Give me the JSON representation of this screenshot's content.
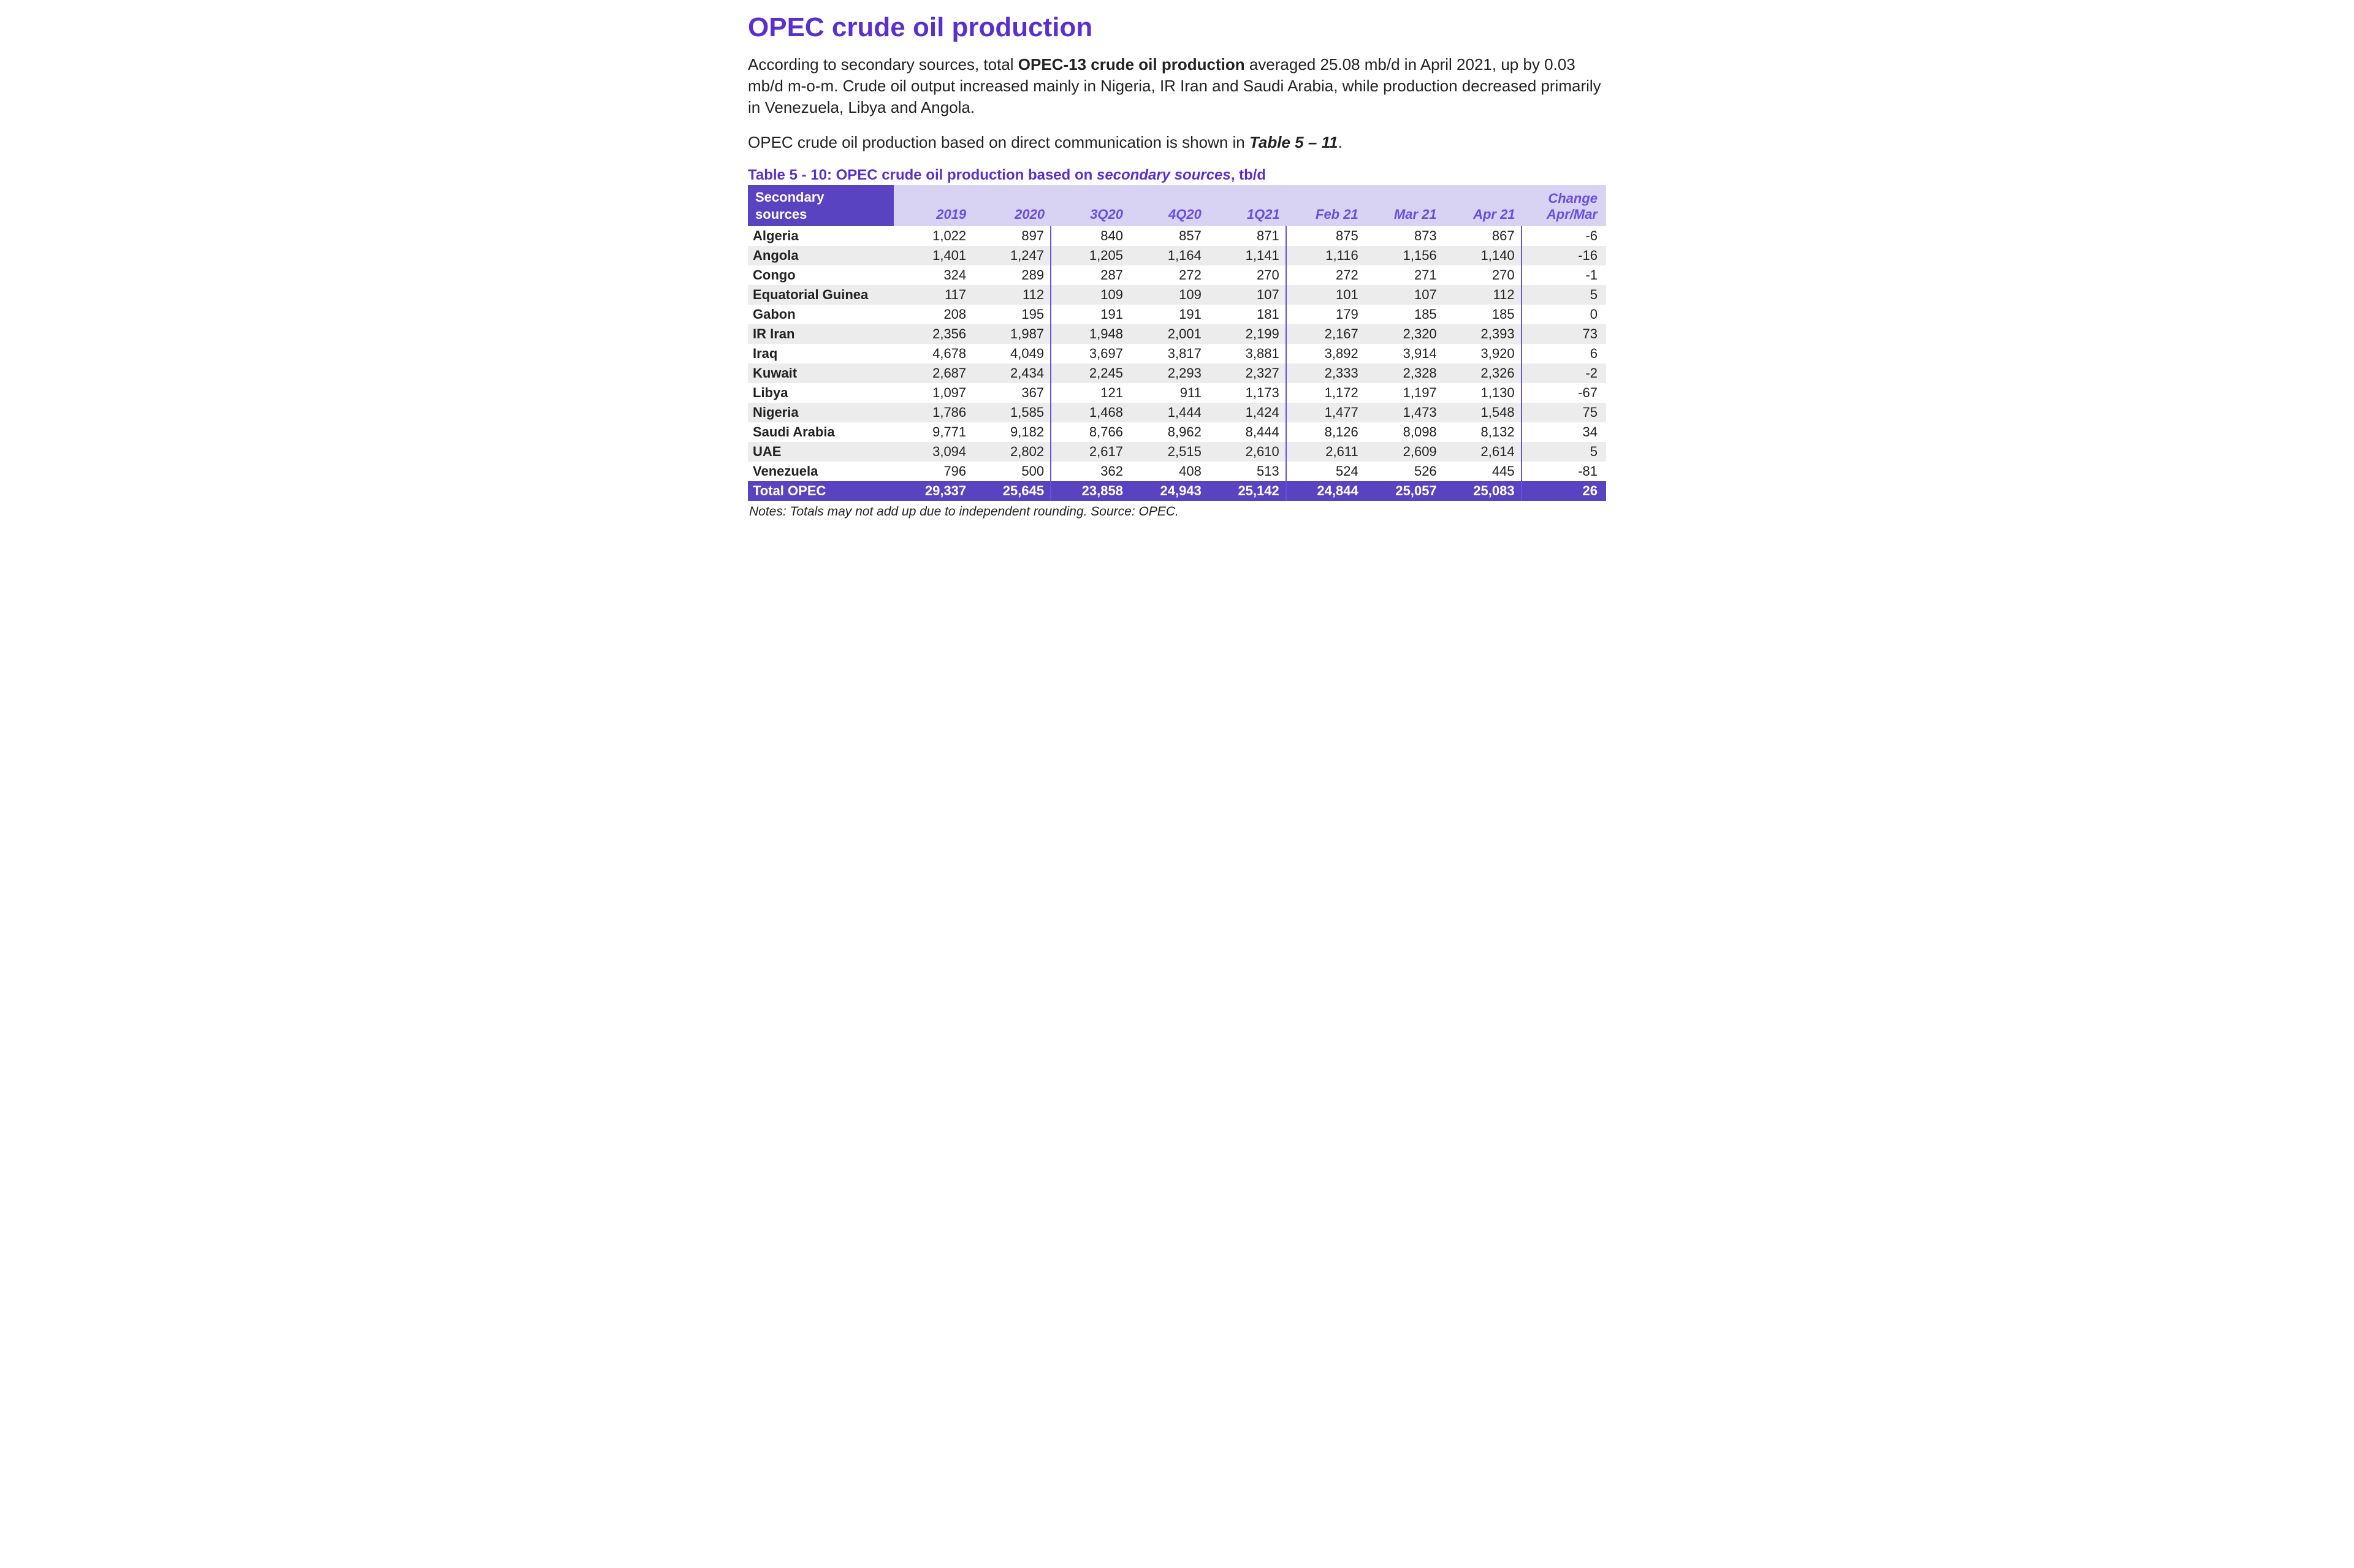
{
  "colors": {
    "purple": "#5a2fd1",
    "purple_header": "#5a43c0",
    "purple_light": "#d8d3f2",
    "purple_accent": "#6b4de0",
    "row_odd": "#ffffff",
    "row_even": "#ececec",
    "text": "#222222",
    "background": "#ffffff"
  },
  "typography": {
    "family": "Arial",
    "title_size_pt": 33,
    "body_size_pt": 19,
    "caption_size_pt": 18,
    "table_size_pt": 16,
    "notes_size_pt": 16
  },
  "title": "OPEC crude oil production",
  "para1": {
    "pre": "According to secondary sources, total ",
    "bold": "OPEC-13 crude oil production",
    "post": " averaged 25.08 mb/d in April 2021, up by 0.03 mb/d m-o-m. Crude oil output increased mainly in Nigeria, IR Iran and Saudi Arabia, while production decreased primarily in Venezuela, Libya and Angola."
  },
  "para2": {
    "pre": "OPEC crude oil production based on direct communication is shown in ",
    "bolditalic": "Table 5 – 11",
    "post": "."
  },
  "table": {
    "type": "table",
    "caption_pre": "Table 5 - 10: OPEC crude oil production based on ",
    "caption_src": "secondary sources",
    "caption_post": ", tb/d",
    "rowheader_line1": "Secondary",
    "rowheader_line2": "sources",
    "columns": [
      "2019",
      "2020",
      "3Q20",
      "4Q20",
      "1Q21",
      "Feb 21",
      "Mar 21",
      "Apr 21"
    ],
    "change_line1": "Change",
    "change_line2": "Apr/Mar",
    "group_borders_after_cols": [
      2,
      5,
      8
    ],
    "rows": [
      {
        "name": "Algeria",
        "vals": [
          "1,022",
          "897",
          "840",
          "857",
          "871",
          "875",
          "873",
          "867"
        ],
        "chg": "-6"
      },
      {
        "name": "Angola",
        "vals": [
          "1,401",
          "1,247",
          "1,205",
          "1,164",
          "1,141",
          "1,116",
          "1,156",
          "1,140"
        ],
        "chg": "-16"
      },
      {
        "name": "Congo",
        "vals": [
          "324",
          "289",
          "287",
          "272",
          "270",
          "272",
          "271",
          "270"
        ],
        "chg": "-1"
      },
      {
        "name": "Equatorial Guinea",
        "vals": [
          "117",
          "112",
          "109",
          "109",
          "107",
          "101",
          "107",
          "112"
        ],
        "chg": "5"
      },
      {
        "name": "Gabon",
        "vals": [
          "208",
          "195",
          "191",
          "191",
          "181",
          "179",
          "185",
          "185"
        ],
        "chg": "0"
      },
      {
        "name": "IR Iran",
        "vals": [
          "2,356",
          "1,987",
          "1,948",
          "2,001",
          "2,199",
          "2,167",
          "2,320",
          "2,393"
        ],
        "chg": "73"
      },
      {
        "name": "Iraq",
        "vals": [
          "4,678",
          "4,049",
          "3,697",
          "3,817",
          "3,881",
          "3,892",
          "3,914",
          "3,920"
        ],
        "chg": "6"
      },
      {
        "name": "Kuwait",
        "vals": [
          "2,687",
          "2,434",
          "2,245",
          "2,293",
          "2,327",
          "2,333",
          "2,328",
          "2,326"
        ],
        "chg": "-2"
      },
      {
        "name": "Libya",
        "vals": [
          "1,097",
          "367",
          "121",
          "911",
          "1,173",
          "1,172",
          "1,197",
          "1,130"
        ],
        "chg": "-67"
      },
      {
        "name": "Nigeria",
        "vals": [
          "1,786",
          "1,585",
          "1,468",
          "1,444",
          "1,424",
          "1,477",
          "1,473",
          "1,548"
        ],
        "chg": "75"
      },
      {
        "name": "Saudi Arabia",
        "vals": [
          "9,771",
          "9,182",
          "8,766",
          "8,962",
          "8,444",
          "8,126",
          "8,098",
          "8,132"
        ],
        "chg": "34"
      },
      {
        "name": "UAE",
        "vals": [
          "3,094",
          "2,802",
          "2,617",
          "2,515",
          "2,610",
          "2,611",
          "2,609",
          "2,614"
        ],
        "chg": "5"
      },
      {
        "name": "Venezuela",
        "vals": [
          "796",
          "500",
          "362",
          "408",
          "513",
          "524",
          "526",
          "445"
        ],
        "chg": "-81"
      }
    ],
    "total": {
      "name": "Total  OPEC",
      "vals": [
        "29,337",
        "25,645",
        "23,858",
        "24,943",
        "25,142",
        "24,844",
        "25,057",
        "25,083"
      ],
      "chg": "26"
    }
  },
  "notes": "Notes: Totals may not add up due to independent rounding. Source: OPEC."
}
